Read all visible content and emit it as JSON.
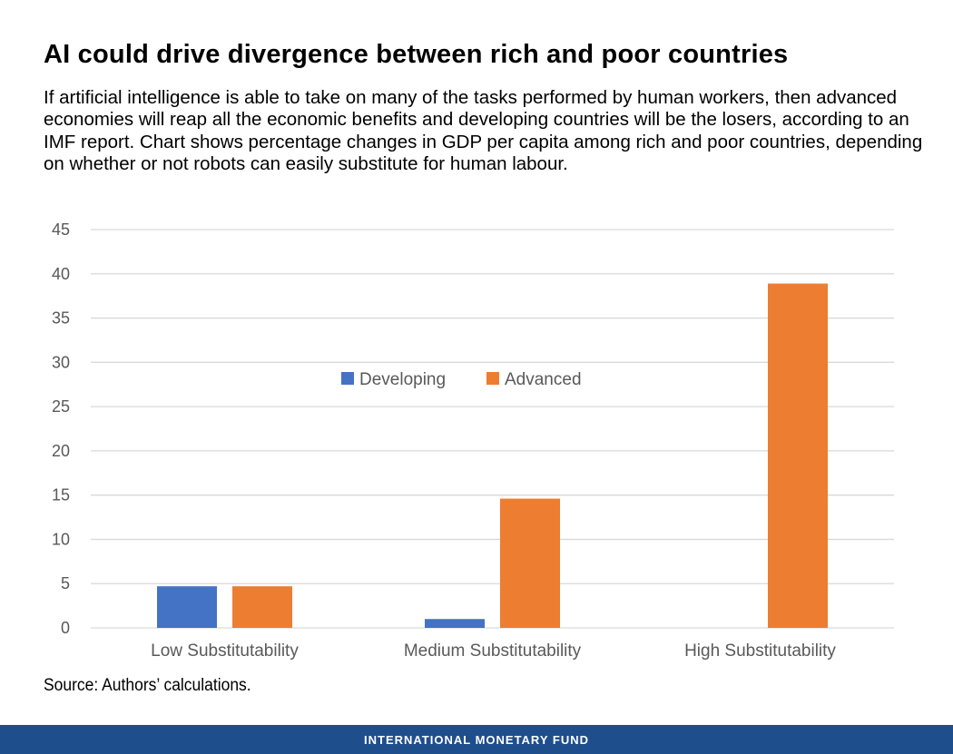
{
  "header": {
    "title": "AI could drive divergence between rich and poor countries",
    "subtitle": "If artificial intelligence is able to take on many of the tasks performed by human workers, then advanced economies will reap all the economic benefits and developing countries will be the losers, according to an IMF report.  Chart shows percentage changes in GDP per capita among rich and poor countries, depending on whether or not  robots can easily substitute for human labour."
  },
  "source": "Source: Authors’ calculations.",
  "footer": {
    "label": "INTERNATIONAL MONETARY FUND",
    "color": "#1f4e8c"
  },
  "chart_data": {
    "type": "bar",
    "categories": [
      "Low Substitutability",
      "Medium Substitutability",
      "High Substitutability"
    ],
    "series": [
      {
        "name": "Developing",
        "values": [
          4.7,
          1.0,
          0
        ],
        "color": "#4472c4"
      },
      {
        "name": "Advanced",
        "values": [
          4.7,
          14.6,
          38.9
        ],
        "color": "#ed7d31"
      }
    ],
    "yticks": [
      0,
      5,
      10,
      15,
      20,
      25,
      30,
      35,
      40,
      45
    ],
    "ylim": [
      0,
      45
    ],
    "grid": true,
    "legend_position": "upper-center",
    "xlabel": "",
    "ylabel": ""
  }
}
